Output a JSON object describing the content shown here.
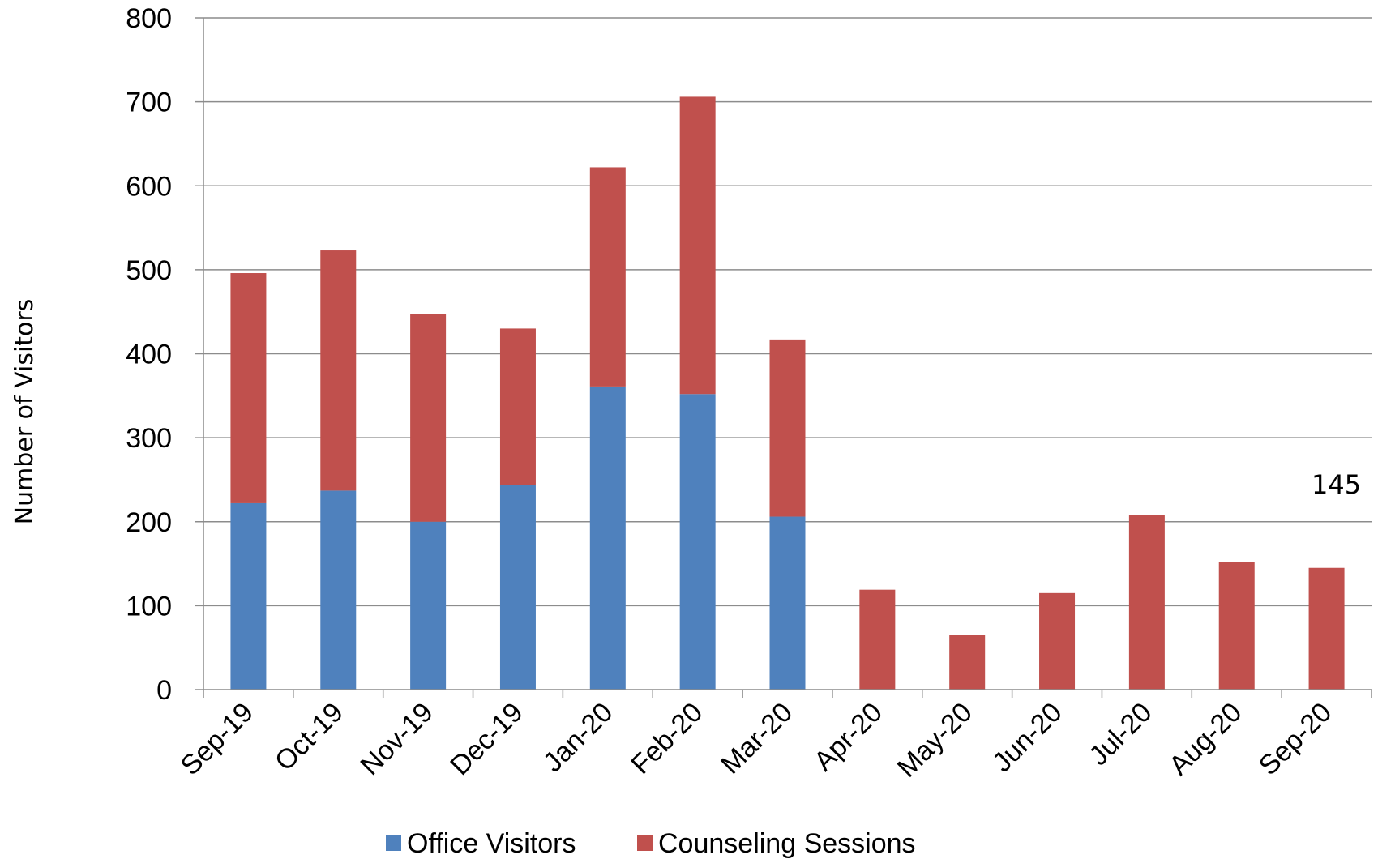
{
  "chart_data": {
    "type": "bar",
    "stacked": true,
    "ylabel": "Number of Visitors",
    "xlabel": "",
    "ylim": [
      0,
      800
    ],
    "yticks": [
      0,
      100,
      200,
      300,
      400,
      500,
      600,
      700,
      800
    ],
    "grid": true,
    "legend_position": "bottom",
    "categories": [
      "Sep-19",
      "Oct-19",
      "Nov-19",
      "Dec-19",
      "Jan-20",
      "Feb-20",
      "Mar-20",
      "Apr-20",
      "May-20",
      "Jun-20",
      "Jul-20",
      "Aug-20",
      "Sep-20"
    ],
    "series": [
      {
        "name": "Office Visitors",
        "color": "#4F81BD",
        "values": [
          222,
          237,
          200,
          244,
          361,
          352,
          206,
          0,
          0,
          0,
          0,
          0,
          0
        ]
      },
      {
        "name": "Counseling Sessions",
        "color": "#C0504D",
        "values": [
          274,
          286,
          247,
          186,
          261,
          354,
          211,
          119,
          65,
          115,
          208,
          152,
          145
        ]
      }
    ],
    "annotations": [
      {
        "category": "Sep-20",
        "text": "145"
      }
    ]
  }
}
